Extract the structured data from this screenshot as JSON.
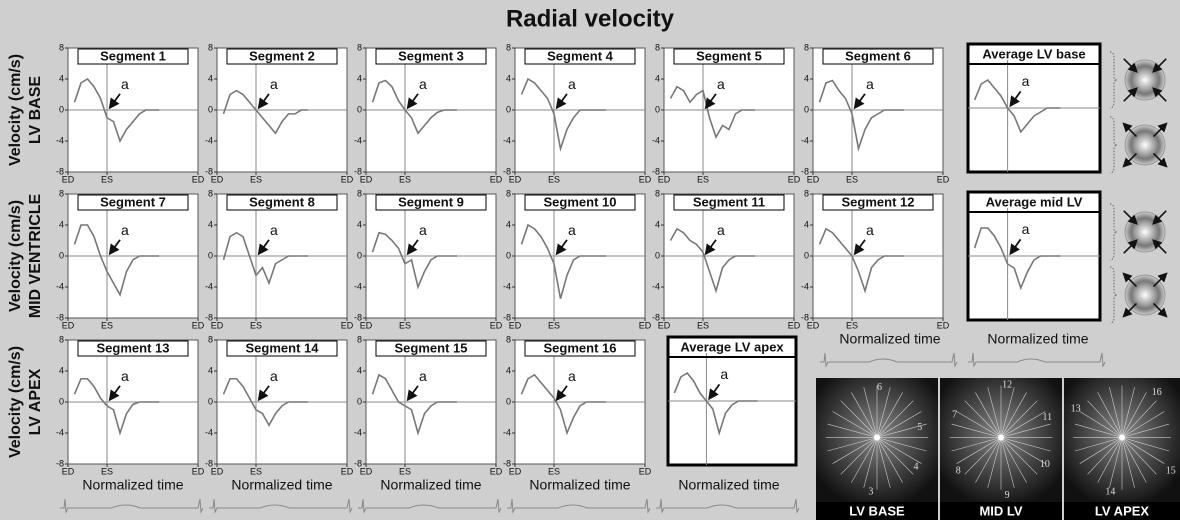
{
  "title": "Radial velocity",
  "row_labels": [
    [
      "Velocity (cm/s)",
      "LV BASE"
    ],
    [
      "Velocity (cm/s)",
      "MID VENTRICLE"
    ],
    [
      "Velocity (cm/s)",
      "LV APEX"
    ]
  ],
  "x_axis_label": "Normalized time",
  "image_labels": [
    "LV BASE",
    "MID LV",
    "LV APEX"
  ],
  "image_numbers": [
    [
      "6",
      "5",
      "4",
      "3"
    ],
    [
      "12",
      "11",
      "10",
      "9",
      "8",
      "7"
    ],
    [
      "16",
      "15",
      "14",
      "13"
    ]
  ],
  "chart_data": [
    {
      "type": "line",
      "title": "Segment 1",
      "annotation": "a",
      "color": "#777777",
      "xlim": [
        0,
        1
      ],
      "ylim": [
        -8,
        8
      ],
      "vline": 0.3,
      "hline": 0,
      "xticks": [
        {
          "value": 0,
          "label": "ED"
        },
        {
          "value": 0.3,
          "label": "ES"
        },
        {
          "value": 1,
          "label": "ED"
        }
      ],
      "yticks": [
        -8,
        -4,
        0,
        4,
        8
      ],
      "x": [
        0.05,
        0.1,
        0.15,
        0.2,
        0.25,
        0.3,
        0.35,
        0.4,
        0.45,
        0.5,
        0.55,
        0.6,
        0.65,
        0.7
      ],
      "values": [
        1,
        3.5,
        4,
        3,
        1.5,
        -1,
        -1.5,
        -4,
        -2.5,
        -1.5,
        -0.5,
        0,
        0,
        0
      ]
    },
    {
      "type": "line",
      "title": "Segment 2",
      "annotation": "a",
      "color": "#777777",
      "xlim": [
        0,
        1
      ],
      "ylim": [
        -8,
        8
      ],
      "vline": 0.3,
      "hline": 0,
      "xticks": [
        {
          "value": 0,
          "label": "ED"
        },
        {
          "value": 0.3,
          "label": "ES"
        },
        {
          "value": 1,
          "label": "ED"
        }
      ],
      "yticks": [
        -8,
        -4,
        0,
        4,
        8
      ],
      "x": [
        0.05,
        0.1,
        0.15,
        0.2,
        0.25,
        0.3,
        0.35,
        0.4,
        0.45,
        0.5,
        0.55,
        0.6,
        0.65,
        0.7
      ],
      "values": [
        -0.5,
        2,
        2.5,
        2,
        1,
        0,
        -1,
        -2,
        -3,
        -1.5,
        -0.5,
        -0.5,
        0,
        0
      ]
    },
    {
      "type": "line",
      "title": "Segment 3",
      "annotation": "a",
      "color": "#777777",
      "xlim": [
        0,
        1
      ],
      "ylim": [
        -8,
        8
      ],
      "vline": 0.3,
      "hline": 0,
      "xticks": [
        {
          "value": 0,
          "label": "ED"
        },
        {
          "value": 0.3,
          "label": "ES"
        },
        {
          "value": 1,
          "label": "ED"
        }
      ],
      "yticks": [
        -8,
        -4,
        0,
        4,
        8
      ],
      "x": [
        0.05,
        0.1,
        0.15,
        0.2,
        0.25,
        0.3,
        0.35,
        0.4,
        0.45,
        0.5,
        0.55,
        0.6,
        0.65,
        0.7
      ],
      "values": [
        1,
        3.5,
        3.8,
        3,
        1.2,
        0,
        -1,
        -3,
        -2,
        -1,
        -0.3,
        0,
        0,
        0
      ]
    },
    {
      "type": "line",
      "title": "Segment 4",
      "annotation": "a",
      "color": "#777777",
      "xlim": [
        0,
        1
      ],
      "ylim": [
        -8,
        8
      ],
      "vline": 0.3,
      "hline": 0,
      "xticks": [
        {
          "value": 0,
          "label": "ED"
        },
        {
          "value": 0.3,
          "label": "ES"
        },
        {
          "value": 1,
          "label": "ED"
        }
      ],
      "yticks": [
        -8,
        -4,
        0,
        4,
        8
      ],
      "x": [
        0.05,
        0.1,
        0.15,
        0.2,
        0.25,
        0.3,
        0.35,
        0.4,
        0.45,
        0.5,
        0.55,
        0.6,
        0.65,
        0.7
      ],
      "values": [
        2,
        4,
        3.5,
        2.5,
        1.5,
        -0.5,
        -5,
        -2.5,
        -1,
        0,
        0,
        0,
        0,
        0
      ]
    },
    {
      "type": "line",
      "title": "Segment 5",
      "annotation": "a",
      "color": "#777777",
      "xlim": [
        0,
        1
      ],
      "ylim": [
        -8,
        8
      ],
      "vline": 0.3,
      "hline": 0,
      "xticks": [
        {
          "value": 0,
          "label": "ED"
        },
        {
          "value": 0.3,
          "label": "ES"
        },
        {
          "value": 1,
          "label": "ED"
        }
      ],
      "yticks": [
        -8,
        -4,
        0,
        4,
        8
      ],
      "x": [
        0.05,
        0.1,
        0.15,
        0.2,
        0.25,
        0.3,
        0.35,
        0.4,
        0.45,
        0.5,
        0.55,
        0.6,
        0.65,
        0.7
      ],
      "values": [
        1.5,
        3,
        2.5,
        1,
        2,
        2.5,
        -1,
        -3.5,
        -2,
        -2.5,
        -0.5,
        0,
        0,
        0
      ]
    },
    {
      "type": "line",
      "title": "Segment 6",
      "annotation": "a",
      "color": "#777777",
      "xlim": [
        0,
        1
      ],
      "ylim": [
        -8,
        8
      ],
      "vline": 0.3,
      "hline": 0,
      "xticks": [
        {
          "value": 0,
          "label": "ED"
        },
        {
          "value": 0.3,
          "label": "ES"
        },
        {
          "value": 1,
          "label": "ED"
        }
      ],
      "yticks": [
        -8,
        -4,
        0,
        4,
        8
      ],
      "x": [
        0.05,
        0.1,
        0.15,
        0.2,
        0.25,
        0.3,
        0.35,
        0.4,
        0.45,
        0.5,
        0.55,
        0.6,
        0.65,
        0.7
      ],
      "values": [
        1,
        3.5,
        3.8,
        2.5,
        1.5,
        -0.5,
        -5,
        -2.5,
        -1,
        -0.5,
        0,
        0,
        0,
        0
      ]
    },
    {
      "type": "line",
      "title": "Segment 7",
      "annotation": "a",
      "color": "#777777",
      "xlim": [
        0,
        1
      ],
      "ylim": [
        -8,
        8
      ],
      "vline": 0.3,
      "hline": 0,
      "xticks": [
        {
          "value": 0,
          "label": "ED"
        },
        {
          "value": 0.3,
          "label": "ES"
        },
        {
          "value": 1,
          "label": "ED"
        }
      ],
      "yticks": [
        -8,
        -4,
        0,
        4,
        8
      ],
      "x": [
        0.05,
        0.1,
        0.15,
        0.2,
        0.25,
        0.3,
        0.35,
        0.4,
        0.45,
        0.5,
        0.55,
        0.6,
        0.65,
        0.7
      ],
      "values": [
        1.5,
        4,
        4,
        2.5,
        0,
        -2,
        -3.5,
        -5,
        -2,
        -0.5,
        0,
        0,
        0,
        0
      ]
    },
    {
      "type": "line",
      "title": "Segment 8",
      "annotation": "a",
      "color": "#777777",
      "xlim": [
        0,
        1
      ],
      "ylim": [
        -8,
        8
      ],
      "vline": 0.3,
      "hline": 0,
      "xticks": [
        {
          "value": 0,
          "label": "ED"
        },
        {
          "value": 0.3,
          "label": "ES"
        },
        {
          "value": 1,
          "label": "ED"
        }
      ],
      "yticks": [
        -8,
        -4,
        0,
        4,
        8
      ],
      "x": [
        0.05,
        0.1,
        0.15,
        0.2,
        0.25,
        0.3,
        0.35,
        0.4,
        0.45,
        0.5,
        0.55,
        0.6,
        0.65,
        0.7
      ],
      "values": [
        -0.5,
        2.5,
        3,
        2.5,
        0,
        -2.5,
        -1.5,
        -3.5,
        -1,
        -0.5,
        0,
        0,
        0,
        0
      ]
    },
    {
      "type": "line",
      "title": "Segment 9",
      "annotation": "a",
      "color": "#777777",
      "xlim": [
        0,
        1
      ],
      "ylim": [
        -8,
        8
      ],
      "vline": 0.3,
      "hline": 0,
      "xticks": [
        {
          "value": 0,
          "label": "ED"
        },
        {
          "value": 0.3,
          "label": "ES"
        },
        {
          "value": 1,
          "label": "ED"
        }
      ],
      "yticks": [
        -8,
        -4,
        0,
        4,
        8
      ],
      "x": [
        0.05,
        0.1,
        0.15,
        0.2,
        0.25,
        0.3,
        0.35,
        0.4,
        0.45,
        0.5,
        0.55,
        0.6,
        0.65,
        0.7
      ],
      "values": [
        0.5,
        3,
        2.8,
        2,
        1,
        -1,
        -0.5,
        -4,
        -2,
        -0.5,
        0,
        0,
        0,
        0
      ]
    },
    {
      "type": "line",
      "title": "Segment 10",
      "annotation": "a",
      "color": "#777777",
      "xlim": [
        0,
        1
      ],
      "ylim": [
        -8,
        8
      ],
      "vline": 0.3,
      "hline": 0,
      "xticks": [
        {
          "value": 0,
          "label": "ED"
        },
        {
          "value": 0.3,
          "label": "ES"
        },
        {
          "value": 1,
          "label": "ED"
        }
      ],
      "yticks": [
        -8,
        -4,
        0,
        4,
        8
      ],
      "x": [
        0.05,
        0.1,
        0.15,
        0.2,
        0.25,
        0.3,
        0.35,
        0.4,
        0.45,
        0.5,
        0.55,
        0.6,
        0.65,
        0.7
      ],
      "values": [
        1.5,
        4,
        3.5,
        2.5,
        1,
        -1,
        -5.5,
        -2.5,
        -0.5,
        0,
        0,
        0,
        0,
        0
      ]
    },
    {
      "type": "line",
      "title": "Segment 11",
      "annotation": "a",
      "color": "#777777",
      "xlim": [
        0,
        1
      ],
      "ylim": [
        -8,
        8
      ],
      "vline": 0.3,
      "hline": 0,
      "xticks": [
        {
          "value": 0,
          "label": "ED"
        },
        {
          "value": 0.3,
          "label": "ES"
        },
        {
          "value": 1,
          "label": "ED"
        }
      ],
      "yticks": [
        -8,
        -4,
        0,
        4,
        8
      ],
      "x": [
        0.05,
        0.1,
        0.15,
        0.2,
        0.25,
        0.3,
        0.35,
        0.4,
        0.45,
        0.5,
        0.55,
        0.6,
        0.65,
        0.7
      ],
      "values": [
        2,
        3.5,
        3,
        2,
        1.5,
        0.5,
        -2,
        -4.5,
        -1.5,
        -0.5,
        0,
        0,
        0,
        0
      ]
    },
    {
      "type": "line",
      "title": "Segment 12",
      "annotation": "a",
      "color": "#777777",
      "xlim": [
        0,
        1
      ],
      "ylim": [
        -8,
        8
      ],
      "vline": 0.3,
      "hline": 0,
      "xticks": [
        {
          "value": 0,
          "label": "ED"
        },
        {
          "value": 0.3,
          "label": "ES"
        },
        {
          "value": 1,
          "label": "ED"
        }
      ],
      "yticks": [
        -8,
        -4,
        0,
        4,
        8
      ],
      "x": [
        0.05,
        0.1,
        0.15,
        0.2,
        0.25,
        0.3,
        0.35,
        0.4,
        0.45,
        0.5,
        0.55,
        0.6,
        0.65,
        0.7
      ],
      "values": [
        1.5,
        3.5,
        3,
        2,
        1,
        0,
        -2,
        -4.5,
        -1.5,
        -0.5,
        0,
        0,
        0,
        0
      ]
    },
    {
      "type": "line",
      "title": "Segment 13",
      "annotation": "a",
      "color": "#777777",
      "xlim": [
        0,
        1
      ],
      "ylim": [
        -8,
        8
      ],
      "vline": 0.3,
      "hline": 0,
      "xticks": [
        {
          "value": 0,
          "label": "ED"
        },
        {
          "value": 0.3,
          "label": "ES"
        },
        {
          "value": 1,
          "label": "ED"
        }
      ],
      "yticks": [
        -8,
        -4,
        0,
        4,
        8
      ],
      "x": [
        0.05,
        0.1,
        0.15,
        0.2,
        0.25,
        0.3,
        0.35,
        0.4,
        0.45,
        0.5,
        0.55,
        0.6,
        0.65,
        0.7
      ],
      "values": [
        1,
        3,
        3,
        2,
        0.5,
        -0.5,
        -1,
        -4,
        -1.5,
        -0.3,
        0,
        0,
        0,
        0
      ]
    },
    {
      "type": "line",
      "title": "Segment 14",
      "annotation": "a",
      "color": "#777777",
      "xlim": [
        0,
        1
      ],
      "ylim": [
        -8,
        8
      ],
      "vline": 0.3,
      "hline": 0,
      "xticks": [
        {
          "value": 0,
          "label": "ED"
        },
        {
          "value": 0.3,
          "label": "ES"
        },
        {
          "value": 1,
          "label": "ED"
        }
      ],
      "yticks": [
        -8,
        -4,
        0,
        4,
        8
      ],
      "x": [
        0.05,
        0.1,
        0.15,
        0.2,
        0.25,
        0.3,
        0.35,
        0.4,
        0.45,
        0.5,
        0.55,
        0.6,
        0.65,
        0.7
      ],
      "values": [
        1,
        3,
        3,
        2,
        0.5,
        -1,
        -1.5,
        -3,
        -1.5,
        -0.5,
        0,
        0,
        0,
        0
      ]
    },
    {
      "type": "line",
      "title": "Segment 15",
      "annotation": "a",
      "color": "#777777",
      "xlim": [
        0,
        1
      ],
      "ylim": [
        -8,
        8
      ],
      "vline": 0.3,
      "hline": 0,
      "xticks": [
        {
          "value": 0,
          "label": "ED"
        },
        {
          "value": 0.3,
          "label": "ES"
        },
        {
          "value": 1,
          "label": "ED"
        }
      ],
      "yticks": [
        -8,
        -4,
        0,
        4,
        8
      ],
      "x": [
        0.05,
        0.1,
        0.15,
        0.2,
        0.25,
        0.3,
        0.35,
        0.4,
        0.45,
        0.5,
        0.55,
        0.6,
        0.65,
        0.7
      ],
      "values": [
        1,
        3.5,
        3,
        1.5,
        0,
        -0.5,
        -1,
        -4,
        -1.5,
        -0.5,
        0,
        0,
        0,
        0
      ]
    },
    {
      "type": "line",
      "title": "Segment 16",
      "annotation": "a",
      "color": "#777777",
      "xlim": [
        0,
        1
      ],
      "ylim": [
        -8,
        8
      ],
      "vline": 0.3,
      "hline": 0,
      "xticks": [
        {
          "value": 0,
          "label": "ED"
        },
        {
          "value": 0.3,
          "label": "ES"
        },
        {
          "value": 1,
          "label": "ED"
        }
      ],
      "yticks": [
        -8,
        -4,
        0,
        4,
        8
      ],
      "x": [
        0.05,
        0.1,
        0.15,
        0.2,
        0.25,
        0.3,
        0.35,
        0.4,
        0.45,
        0.5,
        0.55,
        0.6,
        0.65,
        0.7
      ],
      "values": [
        1,
        3,
        3.5,
        2.5,
        1.5,
        0.5,
        -1,
        -4,
        -2,
        -0.5,
        0,
        0,
        0,
        0
      ]
    },
    {
      "type": "line",
      "title": "Average LV base",
      "annotation": "a",
      "color": "#777777",
      "xlim": [
        0,
        1
      ],
      "ylim": [
        -8,
        8
      ],
      "vline": 0.3,
      "hline": 0,
      "x": [
        0.05,
        0.1,
        0.15,
        0.2,
        0.25,
        0.3,
        0.35,
        0.4,
        0.45,
        0.5,
        0.55,
        0.6,
        0.65,
        0.7
      ],
      "values": [
        1,
        3,
        3.5,
        2.5,
        1.5,
        0,
        -1,
        -3,
        -2,
        -1,
        -0.5,
        0,
        0,
        0
      ]
    },
    {
      "type": "line",
      "title": "Average mid LV",
      "annotation": "a",
      "color": "#777777",
      "xlim": [
        0,
        1
      ],
      "ylim": [
        -8,
        8
      ],
      "vline": 0.3,
      "hline": 0,
      "x": [
        0.05,
        0.1,
        0.15,
        0.2,
        0.25,
        0.3,
        0.35,
        0.4,
        0.45,
        0.5,
        0.55,
        0.6,
        0.65,
        0.7
      ],
      "values": [
        1,
        3.5,
        3.5,
        2.5,
        1,
        -1,
        -1.5,
        -4,
        -2,
        -0.5,
        0,
        0,
        0,
        0
      ]
    },
    {
      "type": "line",
      "title": "Average LV apex",
      "annotation": "a",
      "color": "#777777",
      "xlim": [
        0,
        1
      ],
      "ylim": [
        -8,
        8
      ],
      "vline": 0.3,
      "hline": 0,
      "x": [
        0.05,
        0.1,
        0.15,
        0.2,
        0.25,
        0.3,
        0.35,
        0.4,
        0.45,
        0.5,
        0.55,
        0.6,
        0.65,
        0.7
      ],
      "values": [
        1,
        3,
        3.5,
        2.5,
        1,
        0,
        -1,
        -4,
        -1.5,
        -0.5,
        0,
        0,
        0,
        0
      ]
    }
  ]
}
